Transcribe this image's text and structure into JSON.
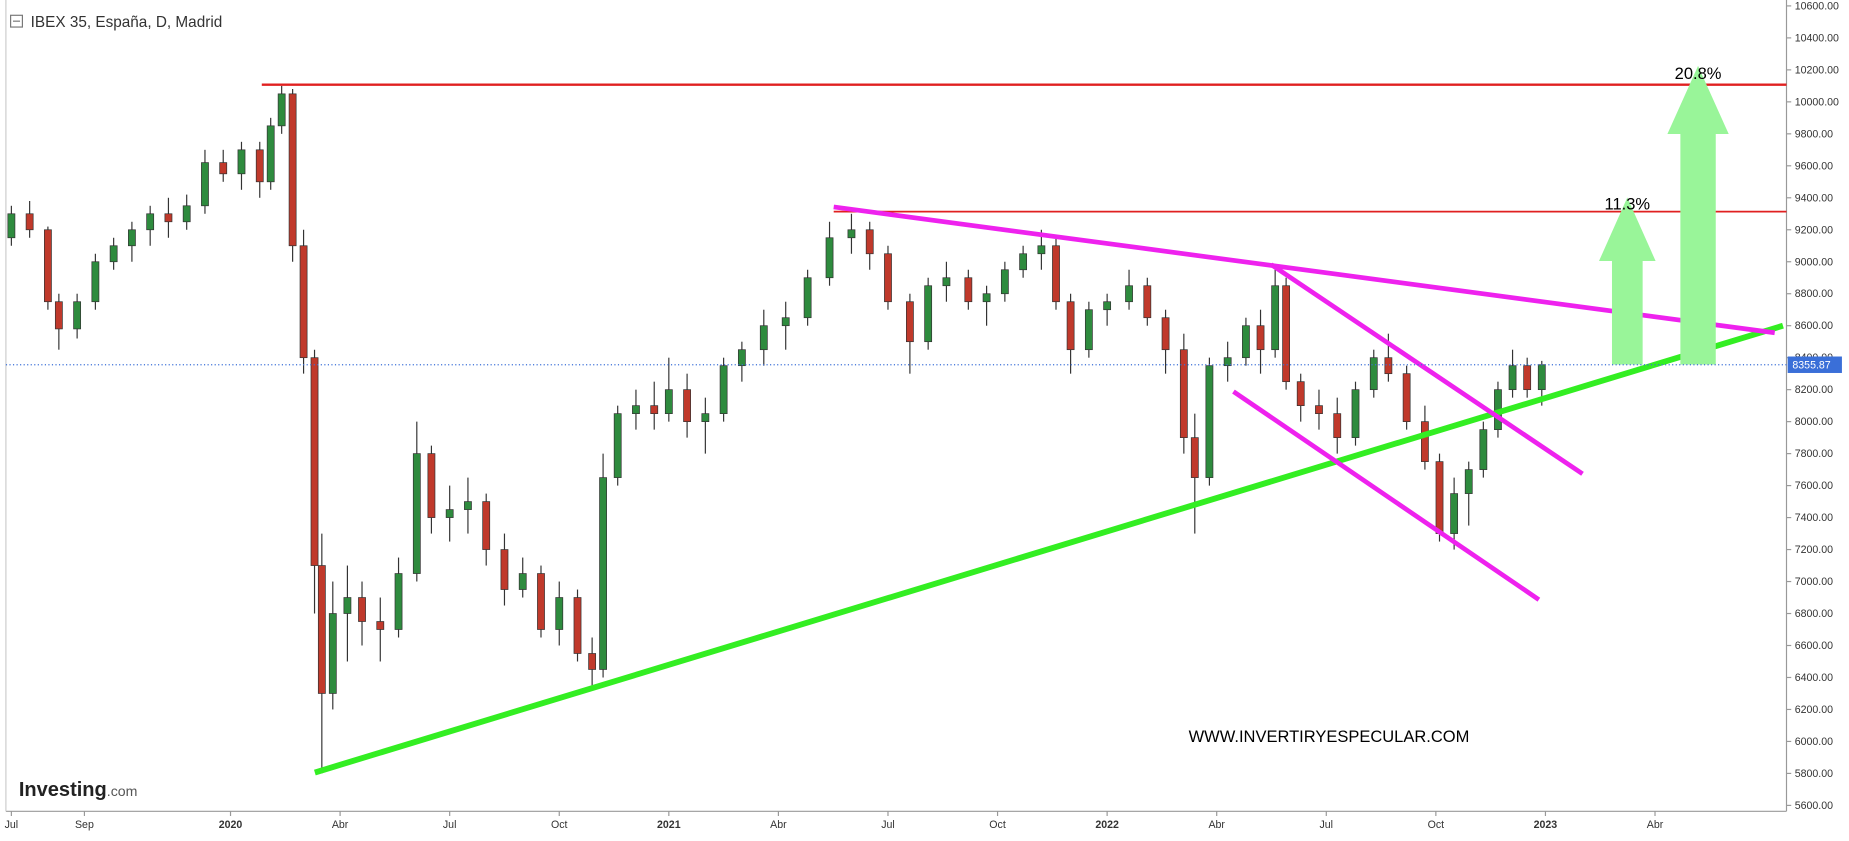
{
  "chart_data": {
    "type": "candlestick",
    "title": "IBEX 35, España, D, Madrid",
    "brand": "Investing",
    "brand_suffix": ".com",
    "watermark": "WWW.INVERTIRYESPECULAR.COM",
    "annotations": [
      "20.8%",
      "11.3%"
    ],
    "last_price": 8355.87,
    "up_color": "#2e8b3e",
    "down_color": "#c0392b",
    "xlim": [
      -0.15,
      48.6
    ],
    "ylim": [
      5563,
      10637
    ],
    "xticks": [
      {
        "value": 0,
        "label": "Jul"
      },
      {
        "value": 2,
        "label": "Sep"
      },
      {
        "value": 6,
        "label": "2020"
      },
      {
        "value": 9,
        "label": "Abr"
      },
      {
        "value": 12,
        "label": "Jul"
      },
      {
        "value": 15,
        "label": "Oct"
      },
      {
        "value": 18,
        "label": "2021"
      },
      {
        "value": 21,
        "label": "Abr"
      },
      {
        "value": 24,
        "label": "Jul"
      },
      {
        "value": 27,
        "label": "Oct"
      },
      {
        "value": 30,
        "label": "2022"
      },
      {
        "value": 33,
        "label": "Abr"
      },
      {
        "value": 36,
        "label": "Jul"
      },
      {
        "value": 39,
        "label": "Oct"
      },
      {
        "value": 42,
        "label": "2023"
      },
      {
        "value": 45,
        "label": "Abr"
      }
    ],
    "yticks": [
      {
        "value": 5600,
        "label": "5600.00"
      },
      {
        "value": 5800,
        "label": "5800.00"
      },
      {
        "value": 6000,
        "label": "6000.00"
      },
      {
        "value": 6200,
        "label": "6200.00"
      },
      {
        "value": 6400,
        "label": "6400.00"
      },
      {
        "value": 6600,
        "label": "6600.00"
      },
      {
        "value": 6800,
        "label": "6800.00"
      },
      {
        "value": 7000,
        "label": "7000.00"
      },
      {
        "value": 7200,
        "label": "7200.00"
      },
      {
        "value": 7400,
        "label": "7400.00"
      },
      {
        "value": 7600,
        "label": "7600.00"
      },
      {
        "value": 7800,
        "label": "7800.00"
      },
      {
        "value": 8000,
        "label": "8000.00"
      },
      {
        "value": 8200,
        "label": "8200.00"
      },
      {
        "value": 8400,
        "label": "8400.00"
      },
      {
        "value": 8600,
        "label": "8600.00"
      },
      {
        "value": 8800,
        "label": "8800.00"
      },
      {
        "value": 9000,
        "label": "9000.00"
      },
      {
        "value": 9200,
        "label": "9200.00"
      },
      {
        "value": 9400,
        "label": "9400.00"
      },
      {
        "value": 9600,
        "label": "9600.00"
      },
      {
        "value": 9800,
        "label": "9800.00"
      },
      {
        "value": 10000,
        "label": "10000.00"
      },
      {
        "value": 10200,
        "label": "10200.00"
      },
      {
        "value": 10400,
        "label": "10400.00"
      },
      {
        "value": 10600,
        "label": "10600.00"
      }
    ],
    "x": [
      0,
      0.5,
      1.0,
      1.3,
      1.8,
      2.3,
      2.8,
      3.3,
      3.8,
      4.3,
      4.8,
      5.3,
      5.8,
      6.3,
      6.8,
      7.1,
      7.4,
      7.7,
      8.0,
      8.3,
      8.5,
      8.8,
      9.2,
      9.6,
      10.1,
      10.6,
      11.1,
      11.5,
      12.0,
      12.5,
      13.0,
      13.5,
      14.0,
      14.5,
      15.0,
      15.5,
      15.9,
      16.2,
      16.6,
      17.1,
      17.6,
      18.0,
      18.5,
      19.0,
      19.5,
      20.0,
      20.6,
      21.2,
      21.8,
      22.4,
      23.0,
      23.5,
      24.0,
      24.6,
      25.1,
      25.6,
      26.2,
      26.7,
      27.2,
      27.7,
      28.2,
      28.6,
      29.0,
      29.5,
      30.0,
      30.6,
      31.1,
      31.6,
      32.1,
      32.4,
      32.8,
      33.3,
      33.8,
      34.2,
      34.6,
      34.9,
      35.3,
      35.8,
      36.3,
      36.8,
      37.3,
      37.7,
      38.2,
      38.7,
      39.1,
      39.5,
      39.9,
      40.3,
      40.7,
      41.1,
      41.5,
      41.9
    ],
    "open": [
      9150,
      9300,
      9200,
      8750,
      8580,
      8750,
      9000,
      9100,
      9200,
      9300,
      9250,
      9350,
      9620,
      9550,
      9700,
      9500,
      9850,
      10050,
      9100,
      8400,
      7100,
      6300,
      6800,
      6900,
      6750,
      6700,
      7050,
      7800,
      7400,
      7450,
      7500,
      7200,
      6950,
      7050,
      6700,
      6900,
      6550,
      6450,
      7650,
      8050,
      8100,
      8050,
      8200,
      8000,
      8050,
      8350,
      8450,
      8600,
      8650,
      8900,
      9150,
      9200,
      9050,
      8750,
      8500,
      8850,
      8900,
      8750,
      8800,
      8950,
      9050,
      9100,
      8750,
      8450,
      8700,
      8750,
      8850,
      8650,
      8450,
      7900,
      7650,
      8350,
      8400,
      8600,
      8450,
      8850,
      8250,
      8100,
      8050,
      7900,
      8200,
      8400,
      8300,
      8000,
      7750,
      7300,
      7550,
      7700,
      7950,
      8200,
      8350,
      8200
    ],
    "high": [
      9350,
      9380,
      9220,
      8800,
      8800,
      9050,
      9150,
      9250,
      9350,
      9400,
      9420,
      9700,
      9700,
      9750,
      9750,
      9900,
      10100,
      10080,
      9200,
      8450,
      7300,
      7000,
      7100,
      7000,
      6900,
      7150,
      8000,
      7850,
      7600,
      7650,
      7550,
      7300,
      7150,
      7100,
      7000,
      6950,
      6650,
      7800,
      8100,
      8200,
      8250,
      8400,
      8300,
      8150,
      8400,
      8500,
      8700,
      8750,
      8950,
      9250,
      9300,
      9250,
      9100,
      8800,
      8900,
      9000,
      8950,
      8850,
      9000,
      9100,
      9200,
      9150,
      8800,
      8750,
      8800,
      8950,
      8900,
      8700,
      8550,
      8050,
      8400,
      8500,
      8650,
      8700,
      8950,
      8900,
      8300,
      8200,
      8150,
      8250,
      8450,
      8550,
      8350,
      8100,
      7800,
      7650,
      7750,
      8000,
      8250,
      8450,
      8400,
      8380
    ],
    "low": [
      9100,
      9150,
      8700,
      8450,
      8520,
      8700,
      8950,
      9000,
      9100,
      9150,
      9200,
      9300,
      9500,
      9450,
      9400,
      9450,
      9800,
      9000,
      8300,
      6800,
      5800,
      6200,
      6500,
      6600,
      6500,
      6650,
      7000,
      7300,
      7250,
      7300,
      7100,
      6850,
      6900,
      6650,
      6600,
      6500,
      6350,
      6400,
      7600,
      7950,
      7950,
      8000,
      7900,
      7800,
      8000,
      8250,
      8350,
      8450,
      8600,
      8850,
      9050,
      8950,
      8700,
      8300,
      8450,
      8750,
      8700,
      8600,
      8750,
      8900,
      8950,
      8700,
      8300,
      8400,
      8600,
      8700,
      8600,
      8300,
      7800,
      7300,
      7600,
      8250,
      8350,
      8300,
      8400,
      8200,
      8000,
      7950,
      7800,
      7850,
      8150,
      8250,
      7950,
      7700,
      7250,
      7200,
      7350,
      7650,
      7900,
      8150,
      8150,
      8100
    ],
    "close": [
      9300,
      9200,
      8750,
      8580,
      8750,
      9000,
      9100,
      9200,
      9300,
      9250,
      9350,
      9620,
      9550,
      9700,
      9500,
      9850,
      10050,
      9100,
      8400,
      7100,
      6300,
      6800,
      6900,
      6750,
      6700,
      7050,
      7800,
      7400,
      7450,
      7500,
      7200,
      6950,
      7050,
      6700,
      6900,
      6550,
      6450,
      7650,
      8050,
      8100,
      8050,
      8200,
      8000,
      8050,
      8350,
      8450,
      8600,
      8650,
      8900,
      9150,
      9200,
      9050,
      8750,
      8500,
      8850,
      8900,
      8750,
      8800,
      8950,
      9050,
      9100,
      8750,
      8450,
      8700,
      8750,
      8850,
      8650,
      8450,
      7900,
      7650,
      8350,
      8400,
      8600,
      8450,
      8850,
      8250,
      8100,
      8050,
      7900,
      8200,
      8400,
      8300,
      8000,
      7750,
      7300,
      7550,
      7700,
      7950,
      8200,
      8350,
      8200,
      8356
    ]
  }
}
